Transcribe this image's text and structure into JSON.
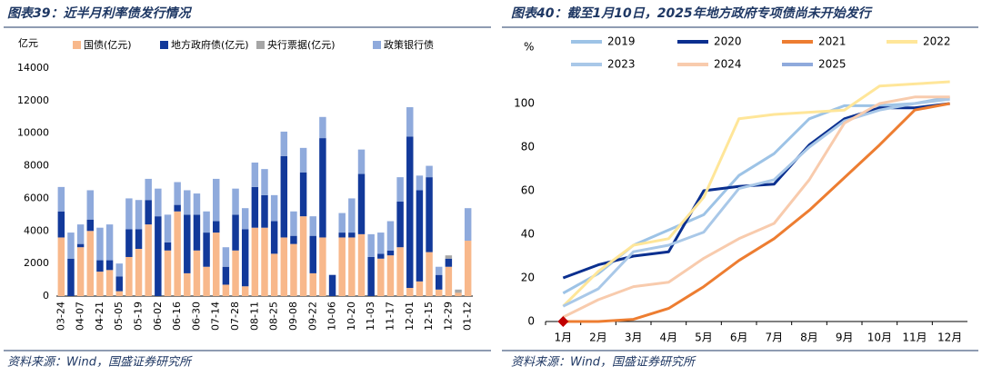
{
  "chart_data": [
    {
      "type": "stacked_bar",
      "title": "图表39：近半月利率债发行情况",
      "ylabel": "亿元",
      "source": "资料来源：Wind，国盛证券研究所",
      "categories": [
        "03-24",
        null,
        "04-07",
        null,
        "04-21",
        null,
        "05-05",
        null,
        "05-19",
        null,
        "06-02",
        null,
        "06-16",
        null,
        "06-30",
        null,
        "07-14",
        null,
        "07-28",
        null,
        "08-11",
        null,
        "08-25",
        null,
        "09-08",
        null,
        "09-22",
        null,
        "10-06",
        null,
        "10-20",
        null,
        "11-03",
        null,
        "11-17",
        null,
        "12-01",
        null,
        "12-15",
        null,
        "12-29",
        null,
        "01-12"
      ],
      "series": [
        {
          "name": "国债(亿元)",
          "color": "#f8b88b",
          "values": [
            3600,
            0,
            3000,
            4000,
            1500,
            1600,
            300,
            2400,
            2900,
            4400,
            0,
            2800,
            5200,
            1400,
            2800,
            1800,
            3900,
            700,
            2800,
            600,
            4200,
            4200,
            2600,
            3600,
            3200,
            4900,
            1400,
            3600,
            0,
            3600,
            3600,
            3800,
            0,
            2300,
            2500,
            3000,
            500,
            900,
            2700,
            400,
            1800,
            200,
            3400
          ]
        },
        {
          "name": "地方政府债(亿元)",
          "color": "#12399a",
          "values": [
            1600,
            2300,
            200,
            700,
            700,
            600,
            900,
            1700,
            1200,
            1500,
            4900,
            500,
            400,
            3600,
            2200,
            2100,
            700,
            1100,
            2200,
            3500,
            2500,
            2000,
            2000,
            5000,
            500,
            2700,
            2300,
            6100,
            1300,
            300,
            300,
            3700,
            2400,
            300,
            300,
            2800,
            9300,
            5600,
            4600,
            900,
            500,
            0,
            0
          ]
        },
        {
          "name": "央行票据(亿元)",
          "color": "#a6a6a6",
          "values": [
            0,
            0,
            0,
            0,
            0,
            0,
            0,
            0,
            0,
            0,
            0,
            0,
            0,
            0,
            0,
            0,
            0,
            0,
            0,
            0,
            0,
            0,
            0,
            0,
            0,
            0,
            0,
            0,
            0,
            0,
            0,
            0,
            0,
            0,
            0,
            0,
            0,
            0,
            0,
            0,
            200,
            200,
            0
          ]
        },
        {
          "name": "政策银行债",
          "color": "#8faadc",
          "values": [
            1500,
            1600,
            1200,
            1800,
            2000,
            2200,
            800,
            1900,
            1800,
            1300,
            1700,
            1700,
            1400,
            1500,
            1300,
            1300,
            2600,
            1200,
            1600,
            1300,
            1500,
            1600,
            1600,
            1500,
            1500,
            1500,
            1200,
            1300,
            0,
            1200,
            2100,
            1500,
            1400,
            1300,
            1800,
            1500,
            1800,
            900,
            700,
            500,
            0,
            0,
            2000
          ]
        }
      ],
      "ylim": [
        0,
        14000
      ],
      "yticks": [
        0,
        2000,
        4000,
        6000,
        8000,
        10000,
        12000,
        14000
      ]
    },
    {
      "type": "line",
      "title": "图表40：截至1月10日，2025年地方政府专项债尚未开始发行",
      "ylabel": "%",
      "source": "资料来源：Wind，国盛证券研究所",
      "categories": [
        "1月",
        "2月",
        "3月",
        "4月",
        "5月",
        "6月",
        "7月",
        "8月",
        "9月",
        "10月",
        "11月",
        "12月"
      ],
      "series": [
        {
          "name": "2019",
          "color": "#9dc3e6",
          "values": [
            13,
            22,
            35,
            42,
            49,
            67,
            77,
            93,
            99,
            99,
            100,
            103
          ]
        },
        {
          "name": "2020",
          "color": "#0a2f8f",
          "values": [
            20,
            26,
            30,
            32,
            60,
            62,
            63,
            81,
            93,
            98,
            98,
            100
          ]
        },
        {
          "name": "2021",
          "color": "#ed7d31",
          "values": [
            0,
            0,
            1,
            6,
            16,
            28,
            38,
            51,
            66,
            81,
            97,
            100
          ]
        },
        {
          "name": "2022",
          "color": "#ffe699",
          "values": [
            7,
            23,
            35,
            38,
            57,
            93,
            95,
            96,
            97,
            108,
            109,
            110
          ]
        },
        {
          "name": "2023",
          "color": "#a9c8e8",
          "values": [
            7,
            15,
            32,
            35,
            41,
            61,
            65,
            80,
            92,
            97,
            100,
            102
          ]
        },
        {
          "name": "2024",
          "color": "#f8cbad",
          "values": [
            2,
            10,
            16,
            18,
            29,
            38,
            45,
            65,
            91,
            100,
            103,
            103
          ]
        },
        {
          "name": "2025",
          "color": "#8faadc",
          "marker_color": "#c00000",
          "values": [
            0,
            null,
            null,
            null,
            null,
            null,
            null,
            null,
            null,
            null,
            null,
            null
          ]
        }
      ],
      "ylim": [
        0,
        120
      ],
      "yticks": [
        0,
        20,
        40,
        60,
        80,
        100
      ]
    }
  ]
}
